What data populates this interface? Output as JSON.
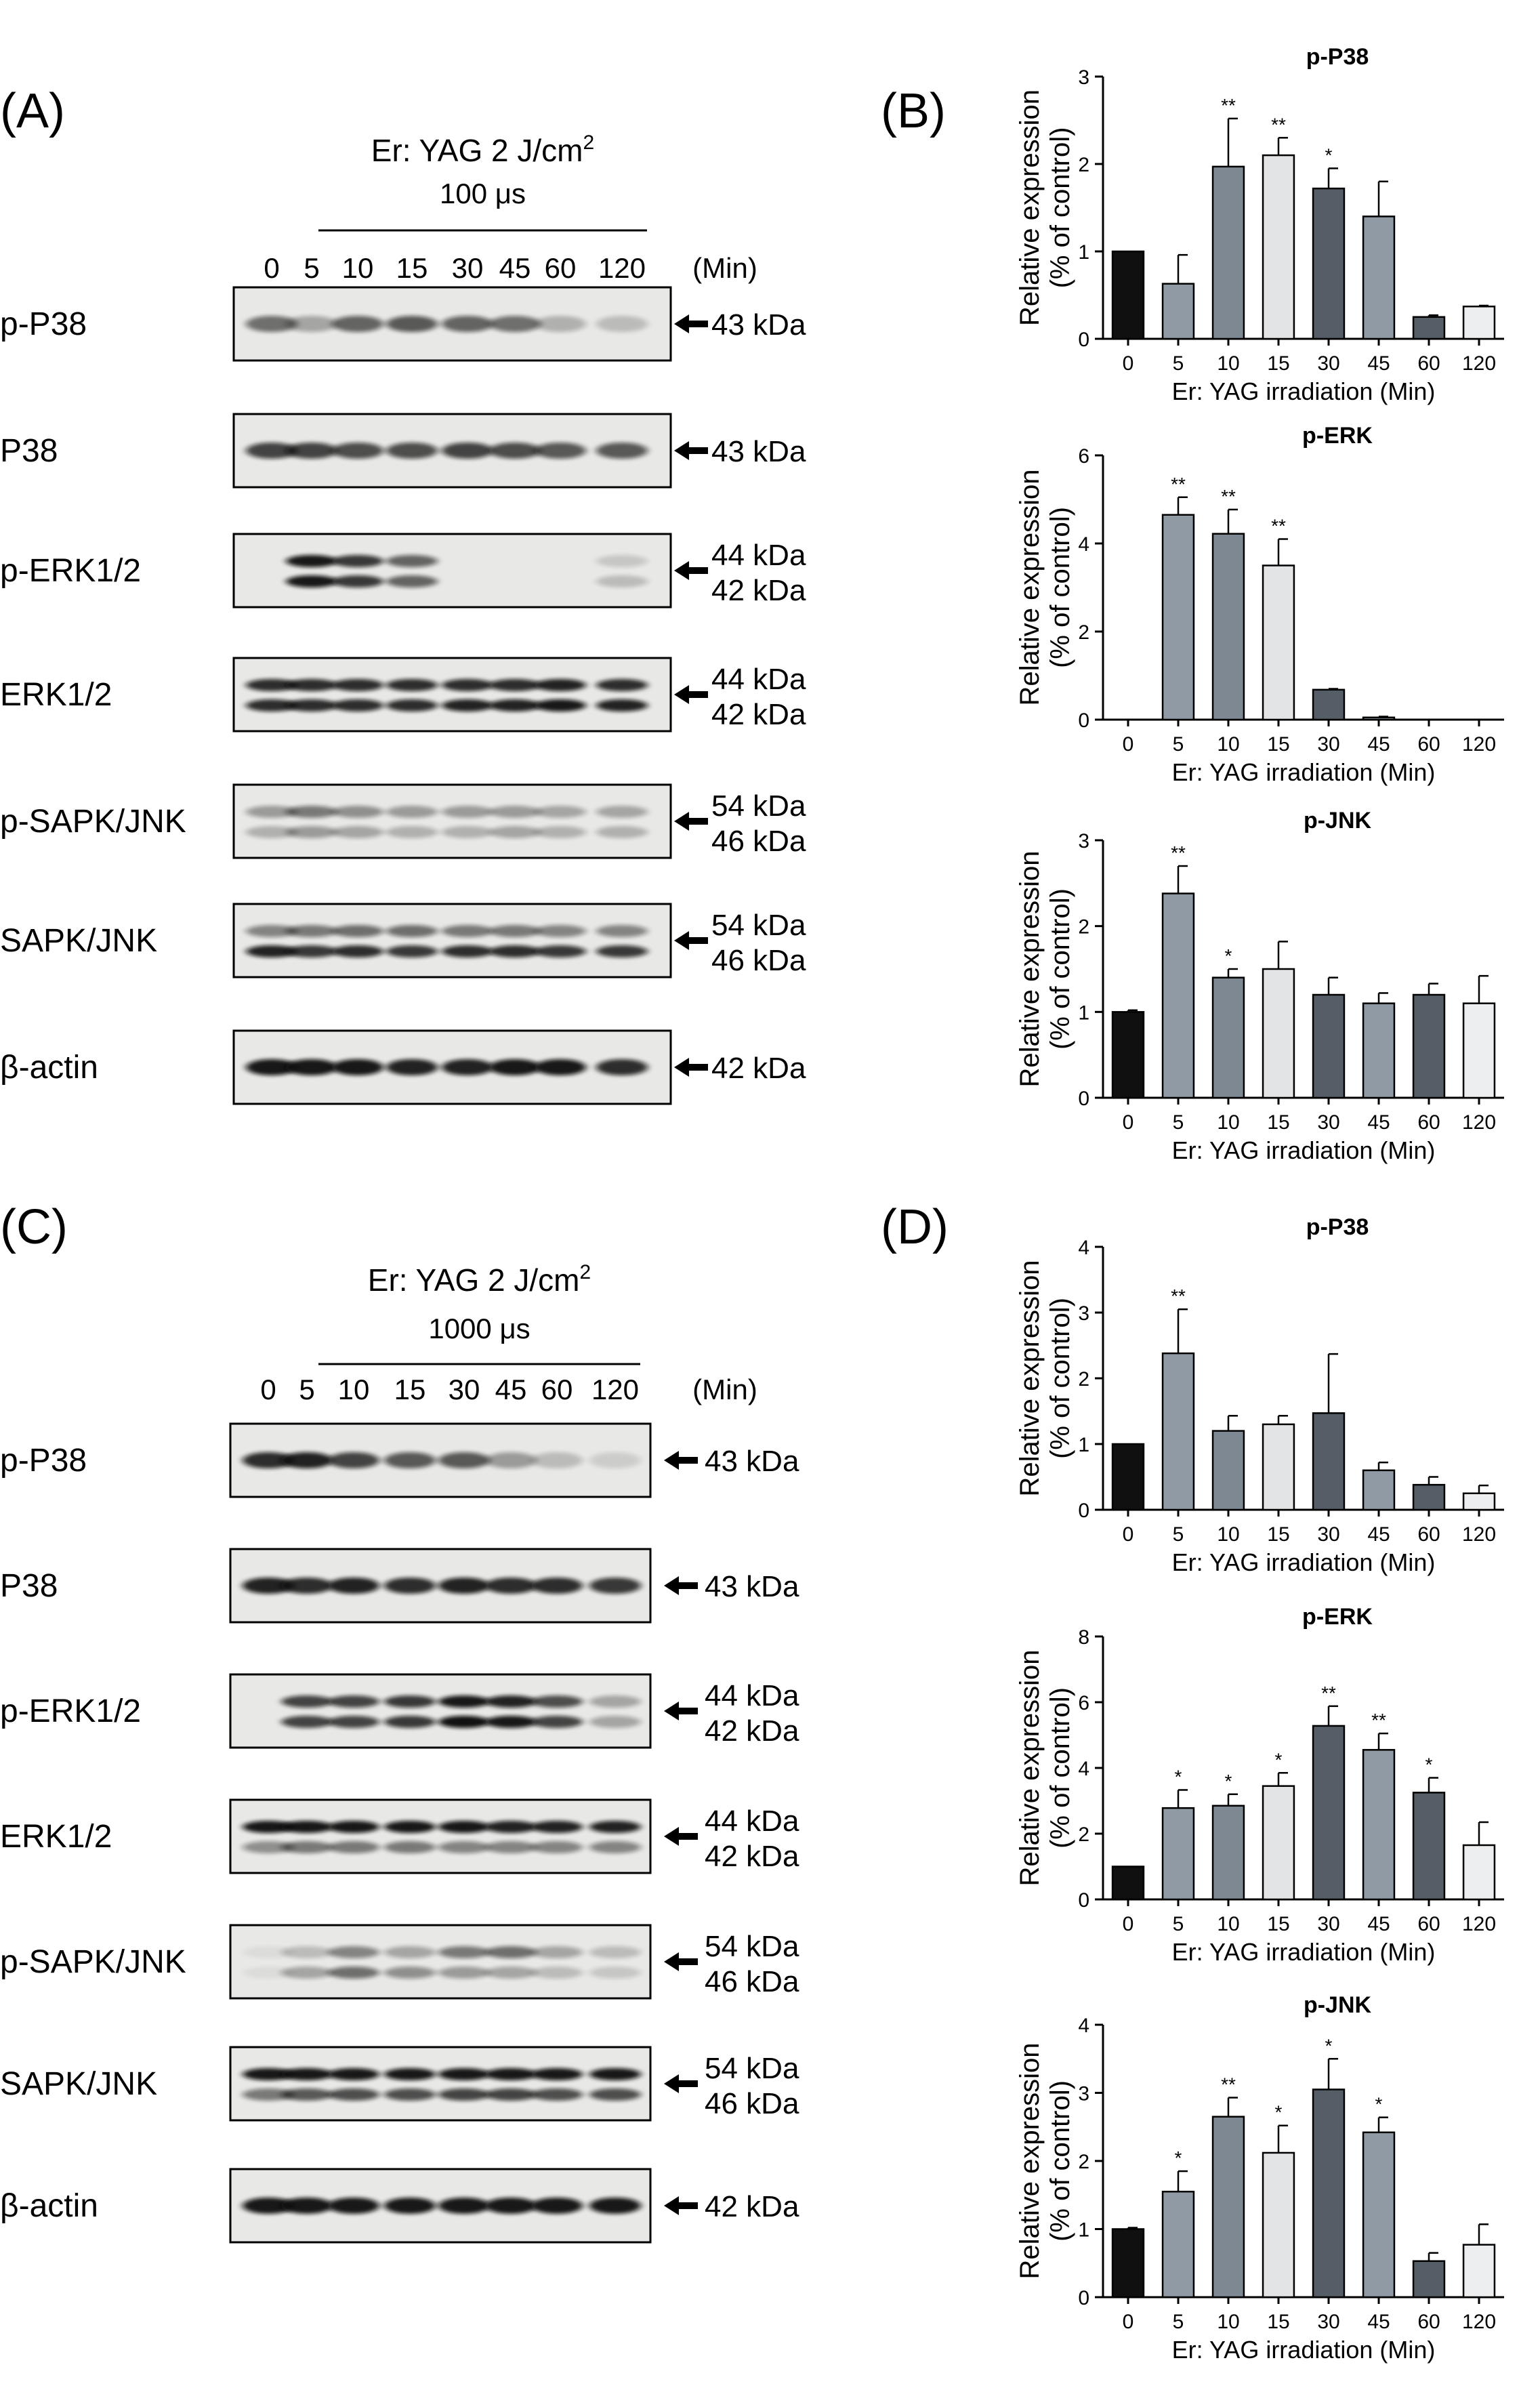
{
  "panel_labels": [
    "(A)",
    "(B)",
    "(C)",
    "(D)"
  ],
  "blots": [
    {
      "panel": "(A)",
      "treatment": "Er: YAG 2 J/cm",
      "treatment_sup": "2",
      "pulse": "100 μs",
      "lanes": [
        "0",
        "5",
        "10",
        "15",
        "30",
        "45",
        "60",
        "120"
      ],
      "lane_unit": "(Min)",
      "rows": [
        {
          "label": "p-P38",
          "kda": [
            "43 kDa"
          ],
          "bands": [
            [
              0.55,
              0.3,
              0.6,
              0.65,
              0.6,
              0.55,
              0.25,
              0.2
            ]
          ]
        },
        {
          "label": "P38",
          "kda": [
            "43 kDa"
          ],
          "bands": [
            [
              0.75,
              0.75,
              0.7,
              0.7,
              0.75,
              0.7,
              0.65,
              0.65
            ]
          ]
        },
        {
          "label": "p-ERK1/2",
          "kda": [
            "44 kDa",
            "42 kDa"
          ],
          "bands": [
            [
              0,
              0.95,
              0.8,
              0.6,
              0,
              0,
              0,
              0.15
            ],
            [
              0,
              0.95,
              0.8,
              0.6,
              0,
              0,
              0,
              0.2
            ]
          ]
        },
        {
          "label": "ERK1/2",
          "kda": [
            "44 kDa",
            "42 kDa"
          ],
          "bands": [
            [
              0.85,
              0.85,
              0.85,
              0.85,
              0.85,
              0.85,
              0.9,
              0.85
            ],
            [
              0.85,
              0.85,
              0.85,
              0.85,
              0.9,
              0.9,
              0.95,
              0.9
            ]
          ]
        },
        {
          "label": "p-SAPK/JNK",
          "kda": [
            "54 kDa",
            "46 kDa"
          ],
          "bands": [
            [
              0.35,
              0.5,
              0.4,
              0.35,
              0.35,
              0.35,
              0.3,
              0.3
            ],
            [
              0.25,
              0.35,
              0.3,
              0.25,
              0.25,
              0.3,
              0.25,
              0.25
            ]
          ]
        },
        {
          "label": "SAPK/JNK",
          "kda": [
            "54 kDa",
            "46 kDa"
          ],
          "bands": [
            [
              0.45,
              0.5,
              0.55,
              0.55,
              0.5,
              0.5,
              0.45,
              0.45
            ],
            [
              0.9,
              0.8,
              0.85,
              0.8,
              0.85,
              0.85,
              0.8,
              0.8
            ]
          ]
        },
        {
          "label": "β-actin",
          "kda": [
            "42 kDa"
          ],
          "bands": [
            [
              0.95,
              0.95,
              0.95,
              0.9,
              0.9,
              0.95,
              0.95,
              0.85
            ]
          ]
        }
      ]
    },
    {
      "panel": "(C)",
      "treatment": "Er: YAG 2 J/cm",
      "treatment_sup": "2",
      "pulse": "1000 μs",
      "lanes": [
        "0",
        "5",
        "10",
        "15",
        "30",
        "45",
        "60",
        "120"
      ],
      "lane_unit": "(Min)",
      "rows": [
        {
          "label": "p-P38",
          "kda": [
            "43 kDa"
          ],
          "bands": [
            [
              0.85,
              0.9,
              0.75,
              0.65,
              0.65,
              0.35,
              0.2,
              0.12
            ]
          ]
        },
        {
          "label": "P38",
          "kda": [
            "43 kDa"
          ],
          "bands": [
            [
              0.9,
              0.85,
              0.9,
              0.85,
              0.9,
              0.85,
              0.85,
              0.8
            ]
          ]
        },
        {
          "label": "p-ERK1/2",
          "kda": [
            "44 kDa",
            "42 kDa"
          ],
          "bands": [
            [
              0,
              0.75,
              0.75,
              0.8,
              0.95,
              0.9,
              0.7,
              0.3
            ],
            [
              0,
              0.75,
              0.75,
              0.8,
              0.98,
              0.95,
              0.75,
              0.3
            ]
          ]
        },
        {
          "label": "ERK1/2",
          "kda": [
            "44 kDa",
            "42 kDa"
          ],
          "bands": [
            [
              0.95,
              0.95,
              0.95,
              0.95,
              0.95,
              0.9,
              0.9,
              0.9
            ],
            [
              0.4,
              0.5,
              0.5,
              0.5,
              0.45,
              0.45,
              0.45,
              0.45
            ]
          ]
        },
        {
          "label": "p-SAPK/JNK",
          "kda": [
            "54 kDa",
            "46 kDa"
          ],
          "bands": [
            [
              0.05,
              0.2,
              0.45,
              0.3,
              0.5,
              0.55,
              0.3,
              0.2
            ],
            [
              0.05,
              0.3,
              0.55,
              0.4,
              0.35,
              0.3,
              0.2,
              0.15
            ]
          ]
        },
        {
          "label": "SAPK/JNK",
          "kda": [
            "54 kDa",
            "46 kDa"
          ],
          "bands": [
            [
              0.95,
              0.95,
              0.95,
              0.95,
              0.95,
              0.95,
              0.95,
              0.95
            ],
            [
              0.5,
              0.65,
              0.7,
              0.7,
              0.75,
              0.75,
              0.7,
              0.7
            ]
          ]
        },
        {
          "label": "β-actin",
          "kda": [
            "42 kDa"
          ],
          "bands": [
            [
              0.95,
              0.95,
              0.95,
              0.95,
              0.95,
              0.95,
              0.95,
              0.95
            ]
          ]
        }
      ]
    }
  ],
  "bar_colors": [
    "#101010",
    "#8f9aa4",
    "#7d8893",
    "#e2e4e6",
    "#555d66",
    "#8f9aa4",
    "#555d66",
    "#eceeef"
  ],
  "chart_data": [
    {
      "panel": "(B)",
      "type": "bar",
      "title": "p-P38",
      "xlabel": "Er: YAG irradiation (Min)",
      "ylabel": "Relative expression",
      "ylabel2": "(% of control)",
      "categories": [
        "0",
        "5",
        "10",
        "15",
        "30",
        "45",
        "60",
        "120"
      ],
      "values": [
        1.0,
        0.63,
        1.97,
        2.1,
        1.72,
        1.4,
        0.25,
        0.37
      ],
      "errors": [
        0,
        0.33,
        0.55,
        0.2,
        0.23,
        0.4,
        0.02,
        0.01
      ],
      "significance": [
        "",
        "",
        "**",
        "**",
        "*",
        "",
        "",
        ""
      ],
      "ylim": [
        0,
        3
      ],
      "yticks": [
        "0",
        "1",
        "2",
        "3"
      ]
    },
    {
      "panel": "(B)",
      "type": "bar",
      "title": "p-ERK",
      "xlabel": "Er: YAG irradiation (Min)",
      "ylabel": "Relative expression",
      "ylabel2": "(% of control)",
      "categories": [
        "0",
        "5",
        "10",
        "15",
        "30",
        "45",
        "60",
        "120"
      ],
      "values": [
        0,
        4.65,
        4.22,
        3.5,
        0.68,
        0.05,
        0,
        0
      ],
      "errors": [
        0,
        0.4,
        0.55,
        0.6,
        0.02,
        0.02,
        0,
        0
      ],
      "significance": [
        "",
        "**",
        "**",
        "**",
        "",
        "",
        "",
        ""
      ],
      "ylim": [
        0,
        6
      ],
      "yticks": [
        "0",
        "2",
        "4",
        "6"
      ]
    },
    {
      "panel": "(B)",
      "type": "bar",
      "title": "p-JNK",
      "xlabel": "Er: YAG irradiation (Min)",
      "ylabel": "Relative expression",
      "ylabel2": "(% of control)",
      "categories": [
        "0",
        "5",
        "10",
        "15",
        "30",
        "45",
        "60",
        "120"
      ],
      "values": [
        1.0,
        2.38,
        1.4,
        1.5,
        1.2,
        1.1,
        1.2,
        1.1
      ],
      "errors": [
        0.02,
        0.32,
        0.1,
        0.32,
        0.2,
        0.12,
        0.13,
        0.32
      ],
      "significance": [
        "",
        "**",
        "*",
        "",
        "",
        "",
        "",
        ""
      ],
      "ylim": [
        0,
        3
      ],
      "yticks": [
        "0",
        "1",
        "2",
        "3"
      ]
    },
    {
      "panel": "(D)",
      "type": "bar",
      "title": "p-P38",
      "xlabel": "Er: YAG irradiation (Min)",
      "ylabel": "Relative expression",
      "ylabel2": "(% of control)",
      "categories": [
        "0",
        "5",
        "10",
        "15",
        "30",
        "45",
        "60",
        "120"
      ],
      "values": [
        1.0,
        2.38,
        1.2,
        1.3,
        1.47,
        0.6,
        0.38,
        0.25
      ],
      "errors": [
        0,
        0.67,
        0.23,
        0.13,
        0.9,
        0.12,
        0.12,
        0.12
      ],
      "significance": [
        "",
        "**",
        "",
        "",
        "",
        "",
        "",
        ""
      ],
      "ylim": [
        0,
        4
      ],
      "yticks": [
        "0",
        "1",
        "2",
        "3",
        "4"
      ]
    },
    {
      "panel": "(D)",
      "type": "bar",
      "title": "p-ERK",
      "xlabel": "Er: YAG irradiation (Min)",
      "ylabel": "Relative expression",
      "ylabel2": "(% of control)",
      "categories": [
        "0",
        "5",
        "10",
        "15",
        "30",
        "45",
        "60",
        "120"
      ],
      "values": [
        1.0,
        2.78,
        2.85,
        3.45,
        5.28,
        4.55,
        3.25,
        1.65
      ],
      "errors": [
        0,
        0.55,
        0.35,
        0.4,
        0.6,
        0.5,
        0.45,
        0.7
      ],
      "significance": [
        "",
        "*",
        "*",
        "*",
        "**",
        "**",
        "*",
        ""
      ],
      "ylim": [
        0,
        8
      ],
      "yticks": [
        "0",
        "2",
        "4",
        "6",
        "8"
      ]
    },
    {
      "panel": "(D)",
      "type": "bar",
      "title": "p-JNK",
      "xlabel": "Er: YAG irradiation (Min)",
      "ylabel": "Relative expression",
      "ylabel2": "(% of control)",
      "categories": [
        "0",
        "5",
        "10",
        "15",
        "30",
        "45",
        "60",
        "120"
      ],
      "values": [
        1.0,
        1.55,
        2.65,
        2.12,
        3.05,
        2.42,
        0.53,
        0.77
      ],
      "errors": [
        0.02,
        0.3,
        0.28,
        0.4,
        0.45,
        0.22,
        0.12,
        0.3
      ],
      "significance": [
        "",
        "*",
        "**",
        "*",
        "*",
        "*",
        "",
        ""
      ],
      "ylim": [
        0,
        4
      ],
      "yticks": [
        "0",
        "1",
        "2",
        "3",
        "4"
      ]
    }
  ]
}
